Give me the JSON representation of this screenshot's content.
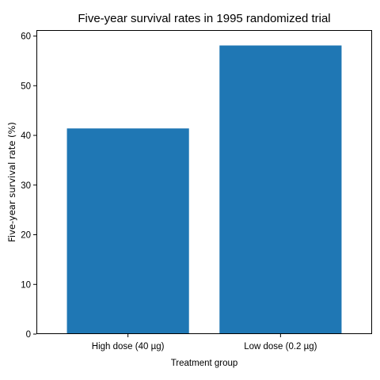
{
  "chart_data": {
    "type": "bar",
    "title": "Five-year survival rates in 1995 randomized trial",
    "xlabel": "Treatment group",
    "ylabel": "Five-year survival rate (%)",
    "categories": [
      "High dose (40 µg)",
      "Low dose (0.2 µg)"
    ],
    "values": [
      41.4,
      58.1
    ],
    "ylim": [
      0,
      61.2
    ],
    "yticks": [
      0,
      10,
      20,
      30,
      40,
      50,
      60
    ],
    "grid": false,
    "legend": "none",
    "bar_color": "#1f77b4"
  }
}
